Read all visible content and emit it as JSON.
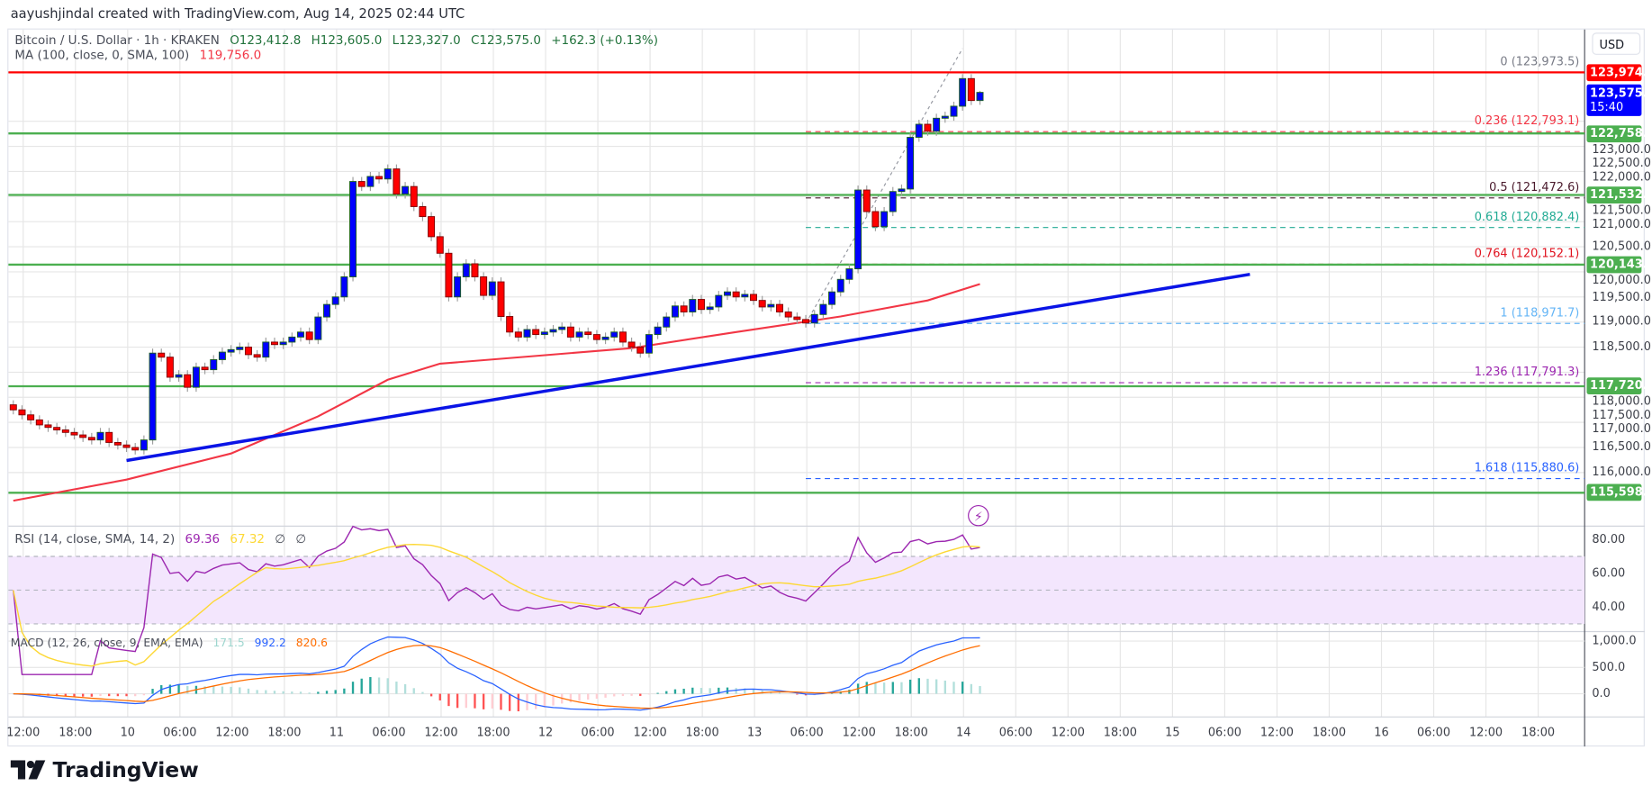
{
  "header": {
    "watermark": "aayushjindal created with TradingView.com, Aug 14, 2025 02:44 UTC",
    "symbol": "Bitcoin / U.S. Dollar · 1h · KRAKEN",
    "open": "O123,412.8",
    "high": "H123,605.0",
    "low": "L123,327.0",
    "close": "C123,575.0",
    "change": "+162.3 (+0.13%)"
  },
  "ma_legend": {
    "label": "MA (100, close, 0, SMA, 100)",
    "value": "119,756.0",
    "color": "#f23645"
  },
  "rsi_legend": {
    "label": "RSI (14, close, SMA, 14, 2)",
    "rsi": "69.36",
    "sma": "67.32",
    "extra1": "∅",
    "extra2": "∅"
  },
  "macd_legend": {
    "label": "MACD (12, 26, close, 9, EMA, EMA)",
    "hist": "171.5",
    "macd": "992.2",
    "signal": "820.6"
  },
  "price_axis": {
    "currency": "USD",
    "ticks": [
      {
        "value": 123000,
        "label": "123,000.0"
      },
      {
        "value": 122500,
        "label": "122,500.0"
      },
      {
        "value": 122000,
        "label": "122,000.0"
      },
      {
        "value": 121500,
        "label": "121,500.0"
      },
      {
        "value": 121000,
        "label": "121,000.0"
      },
      {
        "value": 120500,
        "label": "120,500.0"
      },
      {
        "value": 120000,
        "label": "120,000.0"
      },
      {
        "value": 119500,
        "label": "119,500.0"
      },
      {
        "value": 119000,
        "label": "119,000.0"
      },
      {
        "value": 118500,
        "label": "118,500.0"
      },
      {
        "value": 118000,
        "label": "118,000.0"
      },
      {
        "value": 117500,
        "label": "117,500.0"
      },
      {
        "value": 117000,
        "label": "117,000.0"
      },
      {
        "value": 116500,
        "label": "116,500.0"
      },
      {
        "value": 116000,
        "label": "116,000.0"
      }
    ],
    "last_price": {
      "value": 123575.0,
      "label": "123,575.0",
      "countdown": "15:40",
      "color": "#0000ff"
    }
  },
  "rsi_axis": [
    {
      "value": 80,
      "label": "80.00"
    },
    {
      "value": 60,
      "label": "60.00"
    },
    {
      "value": 40,
      "label": "40.00"
    }
  ],
  "macd_axis": [
    {
      "value": 1000,
      "label": "1,000.0"
    },
    {
      "value": 500,
      "label": "500.0"
    },
    {
      "value": 0,
      "label": "0.0"
    }
  ],
  "time_axis": [
    "12:00",
    "18:00",
    "10",
    "06:00",
    "12:00",
    "18:00",
    "11",
    "06:00",
    "12:00",
    "18:00",
    "12",
    "06:00",
    "12:00",
    "18:00",
    "13",
    "06:00",
    "12:00",
    "18:00",
    "14",
    "06:00",
    "12:00",
    "18:00",
    "15",
    "06:00",
    "12:00",
    "18:00",
    "16",
    "06:00",
    "12:00",
    "18:00"
  ],
  "logo": "TradingView",
  "chart_data": {
    "type": "candlestick",
    "symbol": "BTCUSD",
    "interval": "1h",
    "last_bar": "2025-08-14T02:00",
    "last_bar_ohlc": [
      123412.8,
      123605.0,
      123327.0,
      123575.0
    ],
    "closes": [
      117250,
      117150,
      117050,
      116950,
      116900,
      116850,
      116800,
      116750,
      116700,
      116650,
      116800,
      116600,
      116550,
      116500,
      116450,
      116650,
      118380,
      118300,
      117900,
      117950,
      117700,
      118100,
      118050,
      118250,
      118400,
      118450,
      118500,
      118350,
      118300,
      118600,
      118550,
      118600,
      118700,
      118800,
      118650,
      119100,
      119350,
      119500,
      119900,
      121800,
      121700,
      121900,
      121850,
      122050,
      121550,
      121700,
      121300,
      121100,
      120700,
      120370,
      119500,
      119900,
      120160,
      119900,
      119530,
      119800,
      119110,
      118800,
      118700,
      118850,
      118750,
      118800,
      118850,
      118900,
      118700,
      118800,
      118750,
      118650,
      118700,
      118800,
      118600,
      118500,
      118380,
      118750,
      118900,
      119100,
      119320,
      119200,
      119450,
      119250,
      119300,
      119530,
      119600,
      119500,
      119550,
      119430,
      119300,
      119350,
      119200,
      119100,
      119050,
      118980,
      119150,
      119350,
      119600,
      119850,
      120060,
      121630,
      121200,
      120900,
      121200,
      121600,
      121650,
      122680,
      122940,
      122800,
      123060,
      123100,
      123300,
      123850,
      123413,
      123575
    ],
    "colors": {
      "up": "#0000ff",
      "down": "#ff0000"
    },
    "ma100": [
      [
        "2025-08-09T11:00",
        115440
      ],
      [
        "2025-08-10T00:00",
        115860
      ],
      [
        "2025-08-10T12:00",
        116380
      ],
      [
        "2025-08-10T22:00",
        117120
      ],
      [
        "2025-08-11T06:00",
        117850
      ],
      [
        "2025-08-11T12:00",
        118170
      ],
      [
        "2025-08-11T22:00",
        118310
      ],
      [
        "2025-08-12T10:00",
        118480
      ],
      [
        "2025-08-12T22:00",
        118800
      ],
      [
        "2025-08-13T10:00",
        119110
      ],
      [
        "2025-08-13T20:00",
        119430
      ],
      [
        "2025-08-14T02:00",
        119756
      ]
    ],
    "trendline": {
      "color": "#0a14e6",
      "points": [
        [
          "2025-08-10T00:00",
          116240
        ],
        [
          "2025-08-15T09:00",
          119950
        ]
      ]
    },
    "horizontal_levels": [
      {
        "value": 123974.3,
        "label": "123,974.3",
        "color": "#ff0000"
      },
      {
        "value": 122758.3,
        "label": "122,758.3",
        "color": "#4caf50"
      },
      {
        "value": 121532.1,
        "label": "121,532.1",
        "color": "#4caf50"
      },
      {
        "value": 120143.6,
        "label": "120,143.6",
        "color": "#4caf50"
      },
      {
        "value": 117720.1,
        "label": "117,720.1",
        "color": "#4caf50"
      },
      {
        "value": 115598.3,
        "label": "115,598.3",
        "color": "#4caf50"
      }
    ],
    "fibonacci": {
      "from": [
        "2025-08-13T06:00",
        118971.7
      ],
      "to": [
        "2025-08-14T00:00",
        123973.5
      ],
      "levels": [
        {
          "ratio": 0,
          "price": 123973.5,
          "label": "0 (123,973.5)",
          "color": "#787b86"
        },
        {
          "ratio": 0.236,
          "price": 122793.1,
          "label": "0.236 (122,793.1)",
          "color": "#f23645"
        },
        {
          "ratio": 0.5,
          "price": 121472.6,
          "label": "0.5 (121,472.6)",
          "color": "#4a1a2c"
        },
        {
          "ratio": 0.618,
          "price": 120882.4,
          "label": "0.618 (120,882.4)",
          "color": "#22ab94"
        },
        {
          "ratio": 0.764,
          "price": 120152.1,
          "label": "0.764 (120,152.1)",
          "color": "#e0131f"
        },
        {
          "ratio": 1,
          "price": 118971.7,
          "label": "1 (118,971.7)",
          "color": "#64b5f6"
        },
        {
          "ratio": 1.236,
          "price": 117791.3,
          "label": "1.236 (117,791.3)",
          "color": "#9c27b0"
        },
        {
          "ratio": 1.618,
          "price": 115880.6,
          "label": "1.618 (115,880.6)",
          "color": "#2962ff"
        }
      ]
    },
    "rsi": {
      "period": 14,
      "color": "#9c27b0",
      "sma_color": "#fdd835",
      "band": [
        30,
        70
      ]
    },
    "macd": {
      "fast": 12,
      "slow": 26,
      "signal": 9,
      "macd_color": "#2962ff",
      "signal_color": "#ff6d00"
    }
  }
}
